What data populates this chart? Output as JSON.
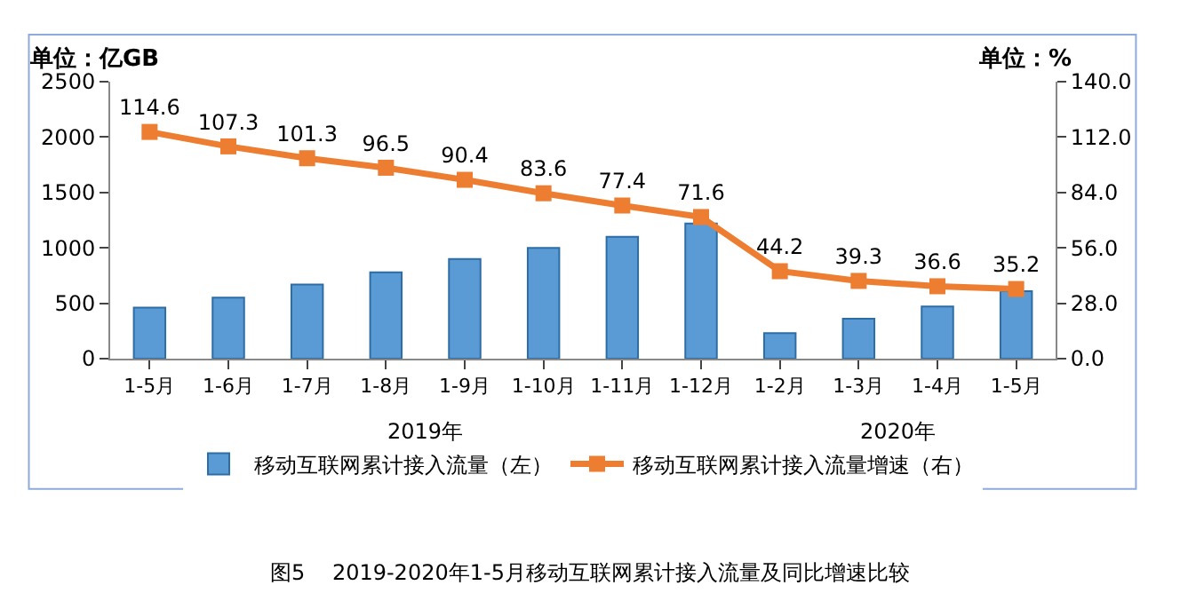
{
  "chart_data": {
    "type": "bar",
    "title": "图5    2019-2020年1-5月移动互联网累计接入流量及同比增速比较",
    "ylabel": "单位：亿GB",
    "y2label": "单位：%",
    "categories": [
      "1-5月",
      "1-6月",
      "1-7月",
      "1-8月",
      "1-9月",
      "1-10月",
      "1-11月",
      "1-12月",
      "1-2月",
      "1-3月",
      "1-4月",
      "1-5月"
    ],
    "series": [
      {
        "name": "移动互联网累计接入流量（左）",
        "color": "#5b9bd5",
        "values": [
          460,
          550,
          670,
          780,
          900,
          1000,
          1100,
          1220,
          230,
          360,
          470,
          610
        ]
      },
      {
        "name": "移动互联网累计接入流量增速（右）",
        "type": "line",
        "axis": "y2",
        "color": "#ed7d31",
        "marker": "square",
        "values": [
          114.6,
          107.3,
          101.3,
          96.5,
          90.4,
          83.6,
          77.4,
          71.6,
          44.2,
          39.3,
          36.6,
          35.2
        ],
        "value_labels": [
          "114.6",
          "107.3",
          "101.3",
          "96.5",
          "90.4",
          "83.6",
          "77.4",
          "71.6",
          "44.2",
          "39.3",
          "36.6",
          "35.2"
        ]
      }
    ],
    "annotations": [
      "2019年",
      "2020年"
    ],
    "ylim": [
      0,
      2500
    ],
    "yticks": [
      0,
      500,
      1000,
      1500,
      2000,
      2500
    ],
    "y2lim": [
      0,
      140
    ],
    "y2ticks": [
      {
        "value": 0,
        "label": "0.0"
      },
      {
        "value": 28,
        "label": "28.0"
      },
      {
        "value": 56,
        "label": "56.0"
      },
      {
        "value": 84,
        "label": "84.0"
      },
      {
        "value": 112,
        "label": "112.0"
      },
      {
        "value": 140,
        "label": "140.0"
      }
    ],
    "legend": "bottom"
  }
}
